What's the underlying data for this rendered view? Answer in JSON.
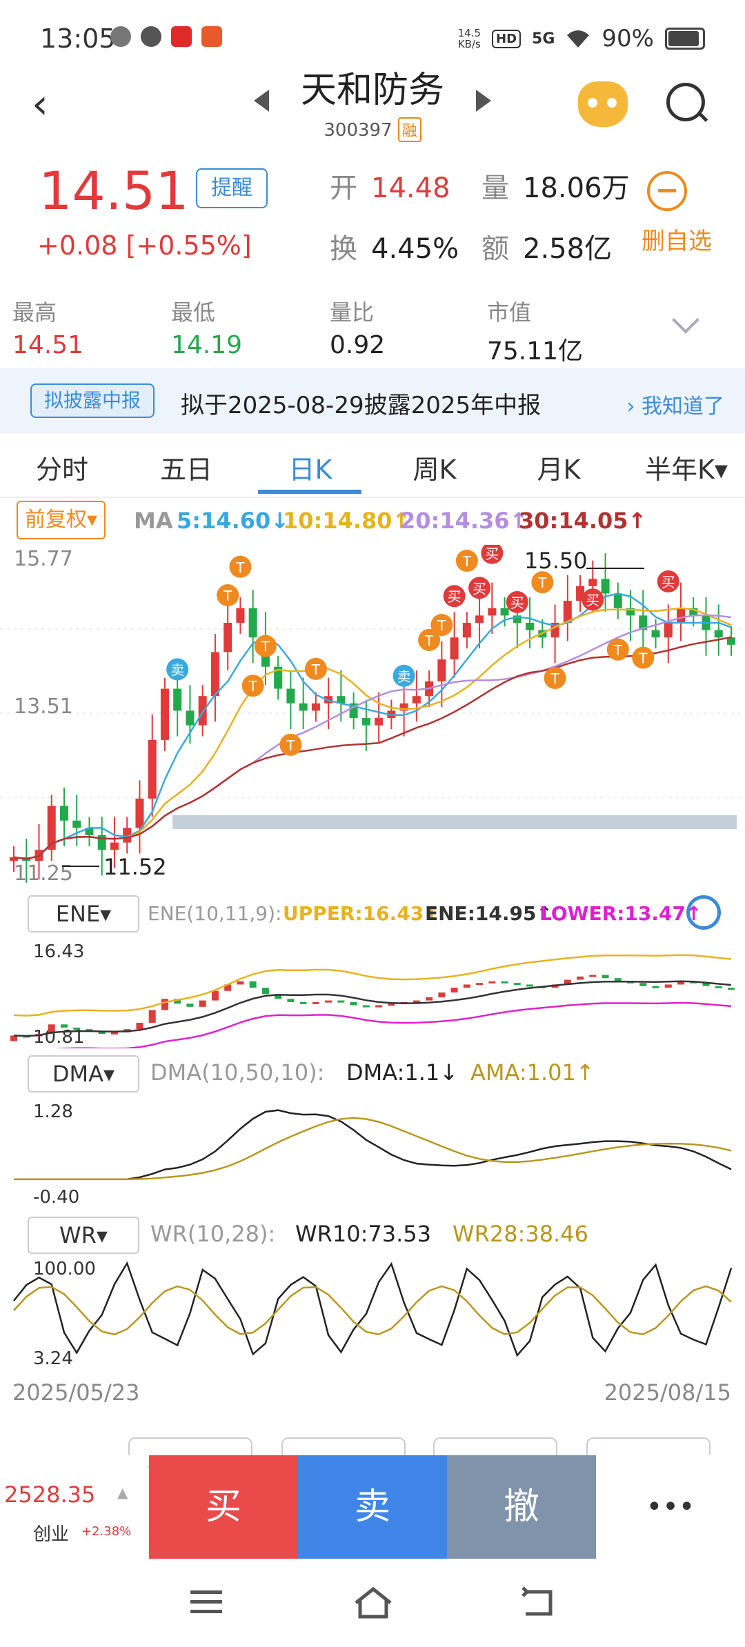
{
  "status": {
    "time": "13:05",
    "speed_top": "14.5",
    "speed_bottom": "KB/s",
    "hd": "HD",
    "net": "5G",
    "battery": "90%"
  },
  "header": {
    "title": "天和防务",
    "code": "300397",
    "rong": "融"
  },
  "quote": {
    "price": "14.51",
    "remind": "提醒",
    "change": "+0.08 [+0.55%]",
    "open_label": "开",
    "open": "14.48",
    "vol_label": "量",
    "vol": "18.06万",
    "turn_label": "换",
    "turn": "4.45%",
    "amt_label": "额",
    "amt": "2.58亿",
    "delete_label": "删自选"
  },
  "stats": [
    {
      "label": "最高",
      "value": "14.51",
      "color": "#e03a3a"
    },
    {
      "label": "最低",
      "value": "14.19",
      "color": "#22a94b"
    },
    {
      "label": "量比",
      "value": "0.92",
      "color": "#222"
    },
    {
      "label": "市值",
      "value": "75.11亿",
      "color": "#222"
    }
  ],
  "notice": {
    "tag": "拟披露中报",
    "text": "拟于2025-08-29披露2025年中报",
    "ack": "我知道了"
  },
  "tabs": [
    "分时",
    "五日",
    "日K",
    "周K",
    "月K",
    "半年K▾"
  ],
  "ma": {
    "adjust": "前复权▾",
    "label": "MA",
    "ma5": "5:14.60↓",
    "ma10": "10:14.80↑",
    "ma20": "20:14.36↑",
    "ma30": "30:14.05↑"
  },
  "ene": {
    "selector": "ENE▾",
    "params": "ENE(10,11,9):",
    "upper": "UPPER:16.43↑",
    "ene": "ENE:14.95↑",
    "lower": "LOWER:13.47↑",
    "ytop": "16.43",
    "ybot": "10.81"
  },
  "dma": {
    "selector": "DMA▾",
    "params": "DMA(10,50,10):",
    "dma": "DMA:1.1↓",
    "ama": "AMA:1.01↑",
    "ytop": "1.28",
    "ybot": "-0.40"
  },
  "wr": {
    "selector": "WR▾",
    "params": "WR(10,28):",
    "wr10": "WR10:73.53",
    "wr28": "WR28:38.46",
    "ytop": "100.00",
    "ybot": "3.24"
  },
  "dates": {
    "start": "2025/05/23",
    "end": "2025/08/15"
  },
  "chart_data": {
    "type": "candlestick",
    "y_labels": {
      "top": "15.77",
      "mid": "13.51",
      "bottom": "11.25"
    },
    "annotations": {
      "high": "15.50",
      "low": "11.52",
      "buy": "买",
      "sell": "卖",
      "t": "T"
    },
    "ylim": [
      11.25,
      15.77
    ],
    "x_range": [
      "2025/05/23",
      "2025/08/15"
    ]
  },
  "bottom": {
    "index_value": "2528.35",
    "index_name": "创业",
    "index_change": "+2.38%",
    "buy": "买",
    "sell": "卖",
    "cancel": "撤",
    "more": "•••"
  },
  "colors": {
    "up": "#e03a3a",
    "down": "#22a94b",
    "accent": "#3b8bd8",
    "orange": "#f08a1e",
    "buy_btn": "#eb4a4a",
    "sell_btn": "#3f86e8",
    "cancel_btn": "#7f93ab"
  }
}
